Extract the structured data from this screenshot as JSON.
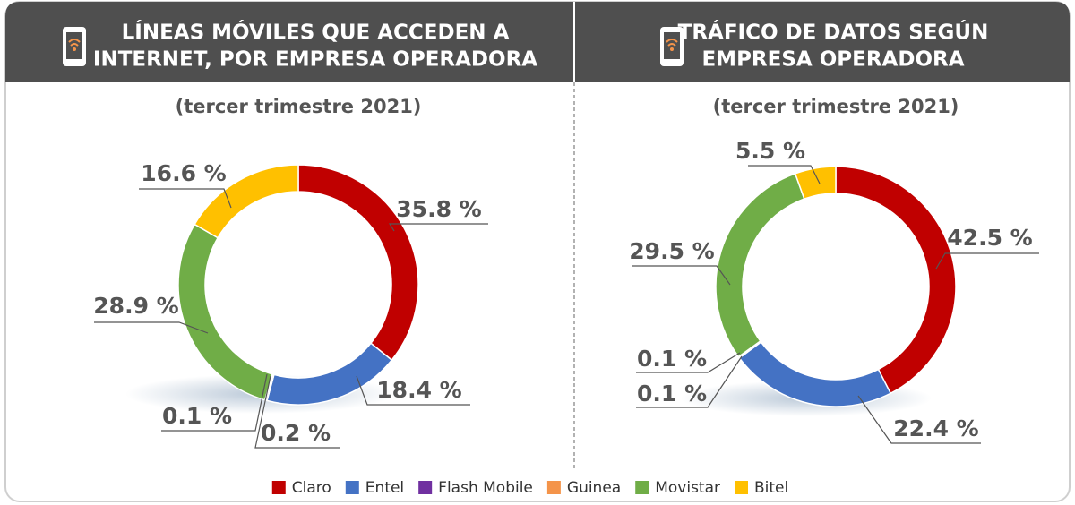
{
  "chart_data": [
    {
      "type": "donut",
      "title": [
        "LÍNEAS MÓVILES QUE ACCEDEN A",
        "INTERNET, POR EMPRESA OPERADORA"
      ],
      "subtitle": "(tercer trimestre 2021)",
      "categories": [
        "Claro",
        "Entel",
        "Flash Mobile",
        "Guinea",
        "Movistar",
        "Bitel"
      ],
      "values": [
        35.8,
        18.4,
        0.2,
        0.1,
        28.9,
        16.6
      ],
      "value_labels": [
        "35.8 %",
        "18.4 %",
        "0.2 %",
        "0.1 %",
        "28.9 %",
        "16.6 %"
      ],
      "colors": [
        "#c00000",
        "#4472c4",
        "#7030a0",
        "#f4944a",
        "#70ad47",
        "#ffc000"
      ]
    },
    {
      "type": "donut",
      "title": [
        "TRÁFICO DE DATOS SEGÚN",
        "EMPRESA OPERADORA"
      ],
      "subtitle": "(tercer trimestre 2021)",
      "categories": [
        "Claro",
        "Entel",
        "Flash Mobile",
        "Guinea",
        "Movistar",
        "Bitel"
      ],
      "values": [
        42.5,
        22.4,
        0.1,
        0.1,
        29.5,
        5.5
      ],
      "value_labels": [
        "42.5 %",
        "22.4 %",
        "0.1 %",
        "0.1 %",
        "29.5 %",
        "5.5 %"
      ],
      "colors": [
        "#c00000",
        "#4472c4",
        "#7030a0",
        "#f4944a",
        "#70ad47",
        "#ffc000"
      ]
    }
  ]
}
